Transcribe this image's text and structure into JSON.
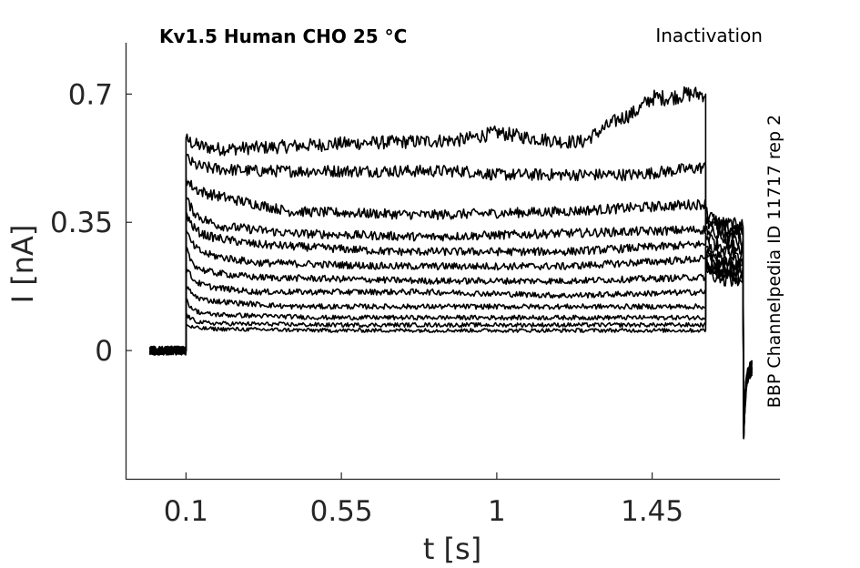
{
  "chart_data": {
    "type": "line",
    "title": "Kv1.5  Human  CHO  25 °C",
    "protocol_label": "Inactivation",
    "side_label": "BBP Channelpedia ID 11717 rep 2",
    "xlabel": "t [s]",
    "ylabel": "I [nA]",
    "xlim": [
      -0.075,
      1.82
    ],
    "ylim": [
      -0.35,
      0.84
    ],
    "x_ticks": [
      0.1,
      0.55,
      1,
      1.45
    ],
    "x_tick_labels": [
      "0.1",
      "0.55",
      "1",
      "1.45"
    ],
    "y_ticks": [
      0,
      0.35,
      0.7
    ],
    "y_tick_labels": [
      "0",
      "0.35",
      "0.7"
    ],
    "grid": false,
    "line_color": "#000000",
    "step_times": {
      "pulse_start": 0.1,
      "pulse_end": 1.605,
      "tail_end": 1.715,
      "trace_start": -0.005,
      "trace_end": 1.74
    },
    "series": [
      {
        "peak": 0.58,
        "x": [
          0.1,
          0.2,
          0.35,
          0.55,
          0.75,
          0.9,
          1.0,
          1.1,
          1.2,
          1.25,
          1.3,
          1.35,
          1.4,
          1.45,
          1.5,
          1.55,
          1.6
        ],
        "values": [
          0.56,
          0.55,
          0.555,
          0.565,
          0.57,
          0.575,
          0.595,
          0.58,
          0.57,
          0.57,
          0.6,
          0.63,
          0.65,
          0.69,
          0.69,
          0.7,
          0.7
        ],
        "tail": 0.34
      },
      {
        "peak": 0.53,
        "x": [
          0.1,
          0.3,
          0.6,
          0.9,
          1.0,
          1.2,
          1.4,
          1.6
        ],
        "values": [
          0.5,
          0.49,
          0.49,
          0.49,
          0.48,
          0.48,
          0.48,
          0.5
        ],
        "tail": 0.3
      },
      {
        "peak": 0.47,
        "x": [
          0.1,
          0.2,
          0.4,
          0.8,
          1.2,
          1.6
        ],
        "values": [
          0.44,
          0.42,
          0.38,
          0.37,
          0.38,
          0.4
        ],
        "tail": 0.33
      },
      {
        "peak": 0.42,
        "x": [
          0.1,
          0.2,
          0.4,
          0.8,
          1.2,
          1.6
        ],
        "values": [
          0.37,
          0.34,
          0.32,
          0.31,
          0.32,
          0.33
        ],
        "tail": 0.32
      },
      {
        "peak": 0.38,
        "x": [
          0.1,
          0.3,
          0.7,
          1.2,
          1.6
        ],
        "values": [
          0.32,
          0.29,
          0.27,
          0.27,
          0.29
        ],
        "tail": 0.28
      },
      {
        "peak": 0.33,
        "x": [
          0.1,
          0.3,
          0.7,
          1.2,
          1.6
        ],
        "values": [
          0.27,
          0.24,
          0.23,
          0.23,
          0.25
        ],
        "tail": 0.26
      },
      {
        "peak": 0.28,
        "x": [
          0.1,
          0.3,
          0.8,
          1.2,
          1.6
        ],
        "values": [
          0.22,
          0.2,
          0.19,
          0.19,
          0.2
        ],
        "tail": 0.24
      },
      {
        "peak": 0.23,
        "x": [
          0.1,
          0.3,
          0.8,
          1.2,
          1.6
        ],
        "values": [
          0.18,
          0.16,
          0.16,
          0.15,
          0.16
        ],
        "tail": 0.23
      },
      {
        "peak": 0.18,
        "x": [
          0.1,
          0.4,
          0.9,
          1.6
        ],
        "values": [
          0.14,
          0.12,
          0.12,
          0.12
        ],
        "tail": 0.22
      },
      {
        "peak": 0.14,
        "x": [
          0.1,
          0.5,
          1.0,
          1.6
        ],
        "values": [
          0.1,
          0.09,
          0.09,
          0.09
        ],
        "tail": 0.21
      },
      {
        "peak": 0.1,
        "x": [
          0.1,
          0.5,
          1.0,
          1.6
        ],
        "values": [
          0.075,
          0.07,
          0.07,
          0.07
        ],
        "tail": 0.2
      },
      {
        "peak": 0.07,
        "x": [
          0.1,
          0.5,
          1.0,
          1.6
        ],
        "values": [
          0.06,
          0.055,
          0.055,
          0.055
        ],
        "tail": 0.19
      }
    ]
  }
}
